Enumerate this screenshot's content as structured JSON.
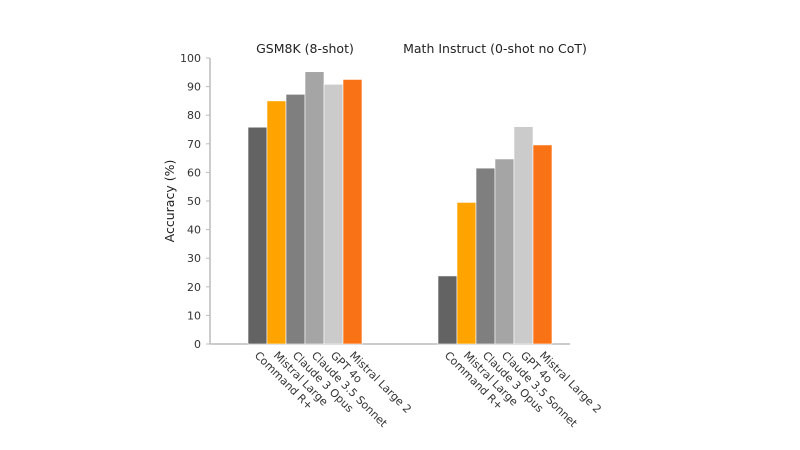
{
  "chart_data": {
    "type": "bar",
    "ylabel": "Accuracy (%)",
    "ylim": [
      0,
      100
    ],
    "yticks": [
      "0",
      "10",
      "20",
      "30",
      "40",
      "50",
      "60",
      "70",
      "80",
      "90",
      "100"
    ],
    "grid": false,
    "groups": [
      {
        "title": "GSM8K (8-shot)",
        "categories": [
          "Command R+",
          "Mistral Large",
          "Claude 3 Opus",
          "Claude 3.5 Sonnet",
          "GPT 4o",
          "Mistral Large 2"
        ],
        "values": [
          75.8,
          85.0,
          87.3,
          95.2,
          90.8,
          92.5
        ]
      },
      {
        "title": "Math Instruct (0-shot no CoT)",
        "categories": [
          "Command R+",
          "Mistral Large",
          "Claude 3 Opus",
          "Claude 3.5 Sonnet",
          "GPT 4o",
          "Mistral Large 2"
        ],
        "values": [
          23.8,
          49.5,
          61.5,
          64.7,
          76.0,
          69.6
        ]
      }
    ],
    "colors": [
      "#636363",
      "#FFA300",
      "#7F7F7F",
      "#A5A5A5",
      "#CBCBCB",
      "#F97316"
    ]
  }
}
